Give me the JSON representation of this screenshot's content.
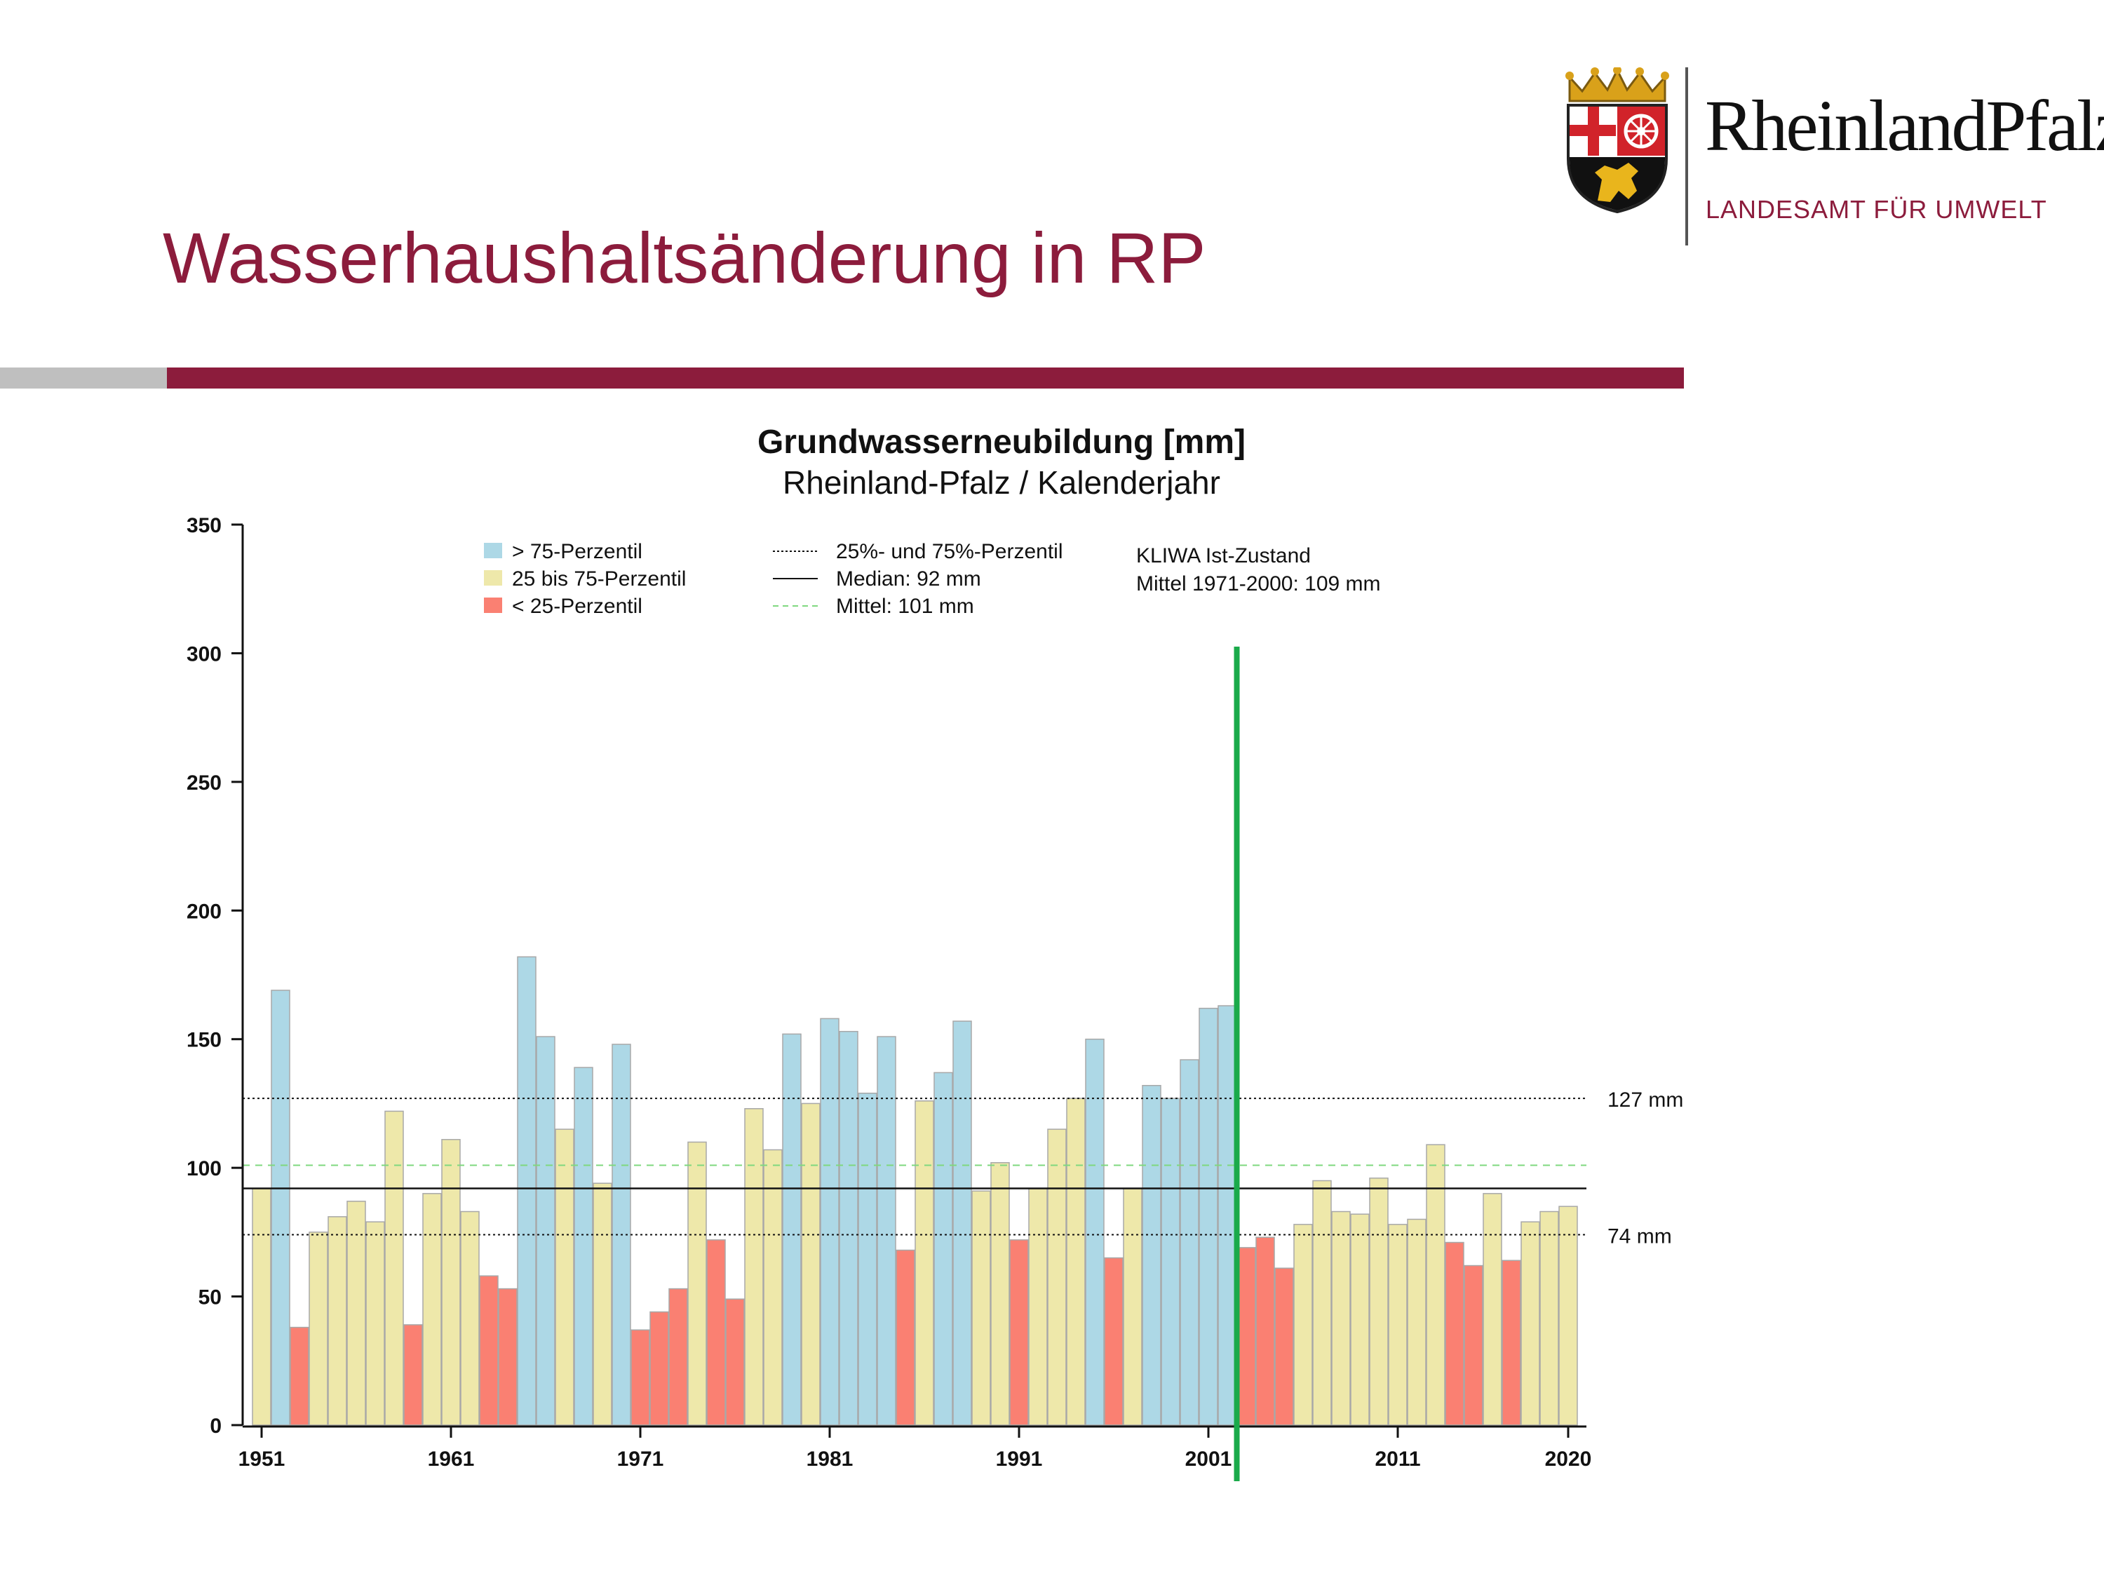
{
  "slide": {
    "title": "Wasserhaushaltsänderung in RP",
    "logo_name": "RheinlandPfalz",
    "logo_sub": "LANDESAMT FÜR UMWELT",
    "colors": {
      "title": "#8c1c3c",
      "rule_accent": "#8c1c3c",
      "rule_grey": "#bfbfbf"
    }
  },
  "chart_data": {
    "type": "bar",
    "title": "Grundwasserneubildung [mm]",
    "subtitle": "Rheinland-Pfalz / Kalenderjahr",
    "xlabel": "",
    "ylabel": "",
    "x_range": [
      1951,
      2020
    ],
    "ylim": [
      0,
      350
    ],
    "y_ticks": [
      0,
      50,
      100,
      150,
      200,
      250,
      300,
      350
    ],
    "x_ticks": [
      1951,
      1961,
      1971,
      1981,
      1991,
      2001,
      2011,
      2020
    ],
    "years": [
      1951,
      1952,
      1953,
      1954,
      1955,
      1956,
      1957,
      1958,
      1959,
      1960,
      1961,
      1962,
      1963,
      1964,
      1965,
      1966,
      1967,
      1968,
      1969,
      1970,
      1971,
      1972,
      1973,
      1974,
      1975,
      1976,
      1977,
      1978,
      1979,
      1980,
      1981,
      1982,
      1983,
      1984,
      1985,
      1986,
      1987,
      1988,
      1989,
      1990,
      1991,
      1992,
      1993,
      1994,
      1995,
      1996,
      1997,
      1998,
      1999,
      2000,
      2001,
      2002,
      2003,
      2004,
      2005,
      2006,
      2007,
      2008,
      2009,
      2010,
      2011,
      2012,
      2013,
      2014,
      2015,
      2016,
      2017,
      2018,
      2019,
      2020
    ],
    "values": [
      92,
      169,
      38,
      75,
      81,
      87,
      79,
      122,
      39,
      90,
      111,
      83,
      58,
      53,
      182,
      151,
      115,
      139,
      94,
      148,
      37,
      44,
      53,
      110,
      72,
      49,
      123,
      107,
      152,
      125,
      158,
      153,
      129,
      151,
      68,
      126,
      137,
      157,
      91,
      102,
      72,
      92,
      115,
      127,
      150,
      65,
      92,
      132,
      127,
      142,
      162,
      163,
      69,
      73,
      61,
      78,
      95,
      83,
      82,
      96,
      78,
      80,
      109,
      71,
      62,
      90,
      64,
      79,
      83,
      85
    ],
    "category": [
      "mid",
      "high",
      "low",
      "mid",
      "mid",
      "mid",
      "mid",
      "mid",
      "low",
      "mid",
      "mid",
      "mid",
      "low",
      "low",
      "high",
      "high",
      "mid",
      "high",
      "mid",
      "high",
      "low",
      "low",
      "low",
      "mid",
      "low",
      "low",
      "mid",
      "mid",
      "high",
      "mid",
      "high",
      "high",
      "high",
      "high",
      "low",
      "mid",
      "high",
      "high",
      "mid",
      "mid",
      "low",
      "mid",
      "mid",
      "mid",
      "high",
      "low",
      "mid",
      "high",
      "high",
      "high",
      "high",
      "high",
      "low",
      "low",
      "low",
      "mid",
      "mid",
      "mid",
      "mid",
      "mid",
      "mid",
      "mid",
      "mid",
      "low",
      "low",
      "mid",
      "low",
      "mid",
      "mid",
      "mid"
    ],
    "category_colors": {
      "high": "#add8e6",
      "mid": "#eee8aa",
      "low": "#fa8072"
    },
    "legend": {
      "placement": "top-left",
      "categories": [
        {
          "key": "high",
          "label": "> 75-Perzentil"
        },
        {
          "key": "mid",
          "label": "25 bis 75-Perzentil"
        },
        {
          "key": "low",
          "label": "< 25-Perzentil"
        }
      ],
      "lines": [
        {
          "style": "dotted",
          "label": "25%- und 75%-Perzentil"
        },
        {
          "style": "solid",
          "label": "Median: 92 mm"
        },
        {
          "style": "dashed-green",
          "label": "Mittel: 101 mm"
        }
      ],
      "note_lines": [
        "KLIWA Ist-Zustand",
        "Mittel 1971-2000: 109 mm"
      ]
    },
    "reference_lines": {
      "p75": {
        "value": 127,
        "label": "127 mm"
      },
      "p25": {
        "value": 74,
        "label": "74 mm"
      },
      "median": 92,
      "mean": 101
    },
    "marker_line": {
      "year": 2002.5,
      "color": "#1aaa4a"
    },
    "grid": false
  }
}
